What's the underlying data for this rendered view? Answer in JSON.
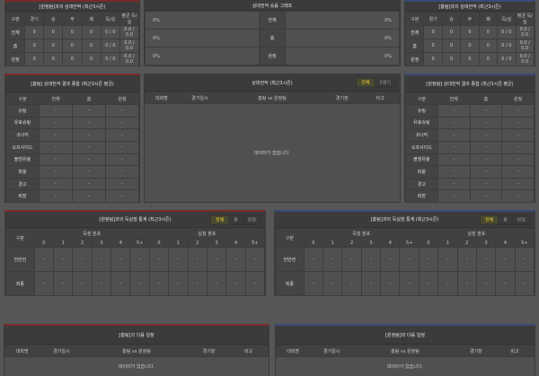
{
  "top_left": {
    "title": "[원정팀]과의 상대전적 (최근3시즌)",
    "headers": [
      "구분",
      "경기",
      "승",
      "무",
      "패",
      "득/실",
      "평균 득/실"
    ],
    "rows": [
      [
        "전체",
        "0",
        "0",
        "0",
        "0",
        "0 / 0",
        "0.0 / 0.0"
      ],
      [
        "홈",
        "0",
        "0",
        "0",
        "0",
        "0 / 0",
        "0.0 / 0.0"
      ],
      [
        "원정",
        "0",
        "0",
        "0",
        "0",
        "0 / 0",
        "0.0 / 0.0"
      ]
    ]
  },
  "win_graph": {
    "title": "상대전적 승률 그래프",
    "rows": [
      {
        "left": "0%",
        "label": "전체",
        "right": "0%"
      },
      {
        "left": "0%",
        "label": "홈",
        "right": "0%"
      },
      {
        "left": "0%",
        "label": "원정",
        "right": "0%"
      }
    ]
  },
  "top_right": {
    "title": "[홈팀]과의 상대전적 (최근3시즌)",
    "headers": [
      "구분",
      "경기",
      "승",
      "무",
      "패",
      "득/실",
      "평균 득/실"
    ],
    "rows": [
      [
        "전체",
        "0",
        "0",
        "0",
        "0",
        "0 / 0",
        "0.0 / 0.0"
      ],
      [
        "홈",
        "0",
        "0",
        "0",
        "0",
        "0 / 0",
        "0.0 / 0.0"
      ],
      [
        "원정",
        "0",
        "0",
        "0",
        "0",
        "0 / 0",
        "0.0 / 0.0"
      ]
    ]
  },
  "summary_left": {
    "title": "[홈팀] 상대전적 결과 종합 (최근3시즌 평균)",
    "headers": [
      "구분",
      "전체",
      "홈",
      "원정"
    ],
    "rows": [
      [
        "슈팅",
        "-",
        "-",
        "-"
      ],
      [
        "유효슈팅",
        "-",
        "-",
        "-"
      ],
      [
        "코너킥",
        "-",
        "-",
        "-"
      ],
      [
        "오프사이드",
        "-",
        "-",
        "-"
      ],
      [
        "볼점유율",
        "-",
        "-",
        "-"
      ],
      [
        "파울",
        "-",
        "-",
        "-"
      ],
      [
        "경고",
        "-",
        "-",
        "-"
      ],
      [
        "퇴장",
        "-",
        "-",
        "-"
      ]
    ]
  },
  "h2h": {
    "title": "상대전적 (최근3시즌)",
    "tabs": [
      "전체",
      "5경기"
    ],
    "headers": [
      "대회명",
      "경기일시",
      "홈팀  vs  원정팀",
      "경기장",
      "비고"
    ],
    "empty": "데이터가 없습니다."
  },
  "summary_right": {
    "title": "[원정팀] 상대전적 결과 종합 (최근3시즌 평균)",
    "headers": [
      "구분",
      "전체",
      "홈",
      "원정"
    ],
    "rows": [
      [
        "슈팅",
        "-",
        "-",
        "-"
      ],
      [
        "유효슈팅",
        "-",
        "-",
        "-"
      ],
      [
        "코너킥",
        "-",
        "-",
        "-"
      ],
      [
        "오프사이드",
        "-",
        "-",
        "-"
      ],
      [
        "볼점유율",
        "-",
        "-",
        "-"
      ],
      [
        "파울",
        "-",
        "-",
        "-"
      ],
      [
        "경고",
        "-",
        "-",
        "-"
      ],
      [
        "퇴장",
        "-",
        "-",
        "-"
      ]
    ]
  },
  "goals_left": {
    "title": "[원정팀]과의 득실점 통계 (최근3시즌)",
    "tabs": [
      "전체",
      "홈",
      "원정"
    ],
    "label": "구분",
    "groups": [
      "득점 분포",
      "실점 분포"
    ],
    "cols": [
      "0",
      "1",
      "2",
      "3",
      "4",
      "5+",
      "0",
      "1",
      "2",
      "3",
      "4",
      "5+"
    ],
    "rows": [
      [
        "전반전",
        "-",
        "-",
        "-",
        "-",
        "-",
        "-",
        "-",
        "-",
        "-",
        "-",
        "-",
        "-"
      ],
      [
        "최종",
        "-",
        "-",
        "-",
        "-",
        "-",
        "-",
        "-",
        "-",
        "-",
        "-",
        "-",
        "-"
      ]
    ]
  },
  "goals_right": {
    "title": "[홈팀]과의 득실점 통계 (최근3시즌)",
    "tabs": [
      "전체",
      "홈",
      "원정"
    ],
    "label": "구분",
    "groups": [
      "득점 분포",
      "실점 분포"
    ],
    "cols": [
      "0",
      "1",
      "2",
      "3",
      "4",
      "5+",
      "0",
      "1",
      "2",
      "3",
      "4",
      "5+"
    ],
    "rows": [
      [
        "전반전",
        "-",
        "-",
        "-",
        "-",
        "-",
        "-",
        "-",
        "-",
        "-",
        "-",
        "-",
        "-"
      ],
      [
        "최종",
        "-",
        "-",
        "-",
        "-",
        "-",
        "-",
        "-",
        "-",
        "-",
        "-",
        "-",
        "-"
      ]
    ]
  },
  "next_left": {
    "title": "[홈팀]의 다음 일정",
    "headers": [
      "대회명",
      "경기일시",
      "홈팀  vs  원정팀",
      "경기장",
      "비고"
    ],
    "empty": "데이터가 없습니다."
  },
  "next_right": {
    "title": "[원정팀]의 다음 일정",
    "headers": [
      "대회명",
      "경기일시",
      "홈팀  vs  원정팀",
      "경기장",
      "비고"
    ],
    "empty": "데이터가 없습니다."
  },
  "colors": {
    "home_accent": "#7a2a2a",
    "away_accent": "#3a4a7a",
    "active_tab": "#f0d030"
  }
}
